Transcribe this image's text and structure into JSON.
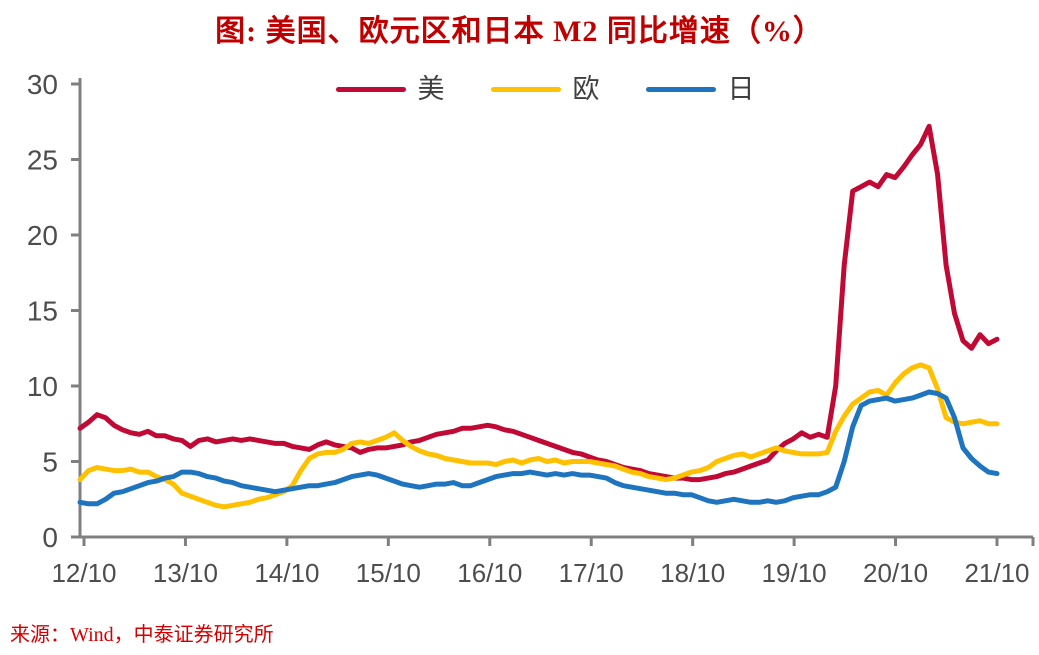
{
  "title": "图: 美国、欧元区和日本 M2 同比增速（%）",
  "source": "来源：Wind，中泰证券研究所",
  "colors": {
    "title_red": "#C00000",
    "source_red": "#D40000",
    "axis_gray": "#7F7F7F",
    "tick_label_gray": "#4D4D4D",
    "legend_label_gray": "#404040",
    "background": "#FFFFFF"
  },
  "chart_data": {
    "type": "line",
    "title": "图: 美国、欧元区和日本 M2 同比增速（%）",
    "xlabel": "",
    "ylabel": "",
    "x_start_month": "2012-10",
    "x_end_month": "2021-10",
    "x_tick_labels": [
      "12/10",
      "13/10",
      "14/10",
      "15/10",
      "16/10",
      "17/10",
      "18/10",
      "19/10",
      "20/10",
      "21/10"
    ],
    "y_ticks": [
      0,
      5,
      10,
      15,
      20,
      25,
      30
    ],
    "ylim": [
      0,
      30
    ],
    "grid": false,
    "legend_position": "top-center",
    "series": [
      {
        "key": "us",
        "name": "美",
        "color": "#C00A35",
        "values": [
          7.2,
          7.6,
          8.1,
          7.9,
          7.4,
          7.1,
          6.9,
          6.8,
          7.0,
          6.7,
          6.7,
          6.5,
          6.4,
          6.0,
          6.4,
          6.5,
          6.3,
          6.4,
          6.5,
          6.4,
          6.5,
          6.4,
          6.3,
          6.2,
          6.2,
          6.0,
          5.9,
          5.8,
          6.1,
          6.3,
          6.1,
          6.0,
          5.9,
          5.6,
          5.8,
          5.9,
          5.9,
          6.0,
          6.1,
          6.3,
          6.4,
          6.6,
          6.8,
          6.9,
          7.0,
          7.2,
          7.2,
          7.3,
          7.4,
          7.3,
          7.1,
          7.0,
          6.8,
          6.6,
          6.4,
          6.2,
          6.0,
          5.8,
          5.6,
          5.5,
          5.3,
          5.1,
          5.0,
          4.8,
          4.6,
          4.5,
          4.4,
          4.2,
          4.1,
          4.0,
          3.9,
          3.9,
          3.8,
          3.8,
          3.9,
          4.0,
          4.2,
          4.3,
          4.5,
          4.7,
          4.9,
          5.1,
          5.7,
          6.2,
          6.5,
          6.9,
          6.6,
          6.8,
          6.6,
          10.0,
          18.0,
          22.9,
          23.2,
          23.5,
          23.2,
          24.0,
          23.8,
          24.5,
          25.3,
          26.0,
          27.2,
          24.0,
          18.0,
          14.8,
          13.0,
          12.5,
          13.4,
          12.8,
          13.1
        ]
      },
      {
        "key": "eu",
        "name": "欧",
        "color": "#FFC000",
        "values": [
          3.8,
          4.4,
          4.6,
          4.5,
          4.4,
          4.4,
          4.5,
          4.3,
          4.3,
          4.0,
          3.8,
          3.5,
          2.9,
          2.7,
          2.5,
          2.3,
          2.1,
          2.0,
          2.1,
          2.2,
          2.3,
          2.5,
          2.6,
          2.8,
          3.0,
          3.4,
          4.4,
          5.2,
          5.5,
          5.6,
          5.6,
          5.8,
          6.2,
          6.3,
          6.2,
          6.4,
          6.6,
          6.9,
          6.4,
          6.0,
          5.7,
          5.5,
          5.4,
          5.2,
          5.1,
          5.0,
          4.9,
          4.9,
          4.9,
          4.8,
          5.0,
          5.1,
          4.9,
          5.1,
          5.2,
          5.0,
          5.1,
          4.9,
          5.0,
          5.0,
          5.0,
          4.9,
          4.8,
          4.7,
          4.5,
          4.3,
          4.2,
          4.0,
          3.9,
          3.8,
          3.9,
          4.1,
          4.3,
          4.4,
          4.6,
          5.0,
          5.2,
          5.4,
          5.5,
          5.3,
          5.5,
          5.7,
          5.9,
          5.7,
          5.6,
          5.5,
          5.5,
          5.5,
          5.6,
          7.0,
          8.0,
          8.8,
          9.2,
          9.6,
          9.7,
          9.4,
          10.2,
          10.8,
          11.2,
          11.4,
          11.2,
          9.8,
          7.9,
          7.6,
          7.5,
          7.6,
          7.7,
          7.5,
          7.5
        ]
      },
      {
        "key": "jp",
        "name": "日",
        "color": "#1E74BE",
        "values": [
          2.3,
          2.2,
          2.2,
          2.5,
          2.9,
          3.0,
          3.2,
          3.4,
          3.6,
          3.7,
          3.9,
          4.0,
          4.3,
          4.3,
          4.2,
          4.0,
          3.9,
          3.7,
          3.6,
          3.4,
          3.3,
          3.2,
          3.1,
          3.0,
          3.1,
          3.2,
          3.3,
          3.4,
          3.4,
          3.5,
          3.6,
          3.8,
          4.0,
          4.1,
          4.2,
          4.1,
          3.9,
          3.7,
          3.5,
          3.4,
          3.3,
          3.4,
          3.5,
          3.5,
          3.6,
          3.4,
          3.4,
          3.6,
          3.8,
          4.0,
          4.1,
          4.2,
          4.2,
          4.3,
          4.2,
          4.1,
          4.2,
          4.1,
          4.2,
          4.1,
          4.1,
          4.0,
          3.9,
          3.6,
          3.4,
          3.3,
          3.2,
          3.1,
          3.0,
          2.9,
          2.9,
          2.8,
          2.8,
          2.6,
          2.4,
          2.3,
          2.4,
          2.5,
          2.4,
          2.3,
          2.3,
          2.4,
          2.3,
          2.4,
          2.6,
          2.7,
          2.8,
          2.8,
          3.0,
          3.3,
          5.0,
          7.3,
          8.7,
          9.0,
          9.1,
          9.2,
          9.0,
          9.1,
          9.2,
          9.4,
          9.6,
          9.5,
          9.2,
          7.9,
          5.9,
          5.2,
          4.7,
          4.3,
          4.2
        ]
      }
    ]
  }
}
